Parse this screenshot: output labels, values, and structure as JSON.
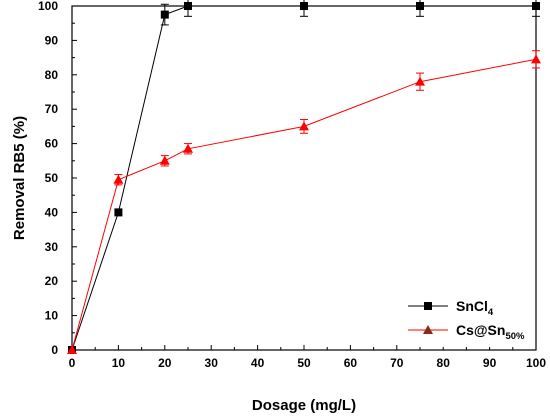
{
  "chart_data": {
    "type": "line",
    "xlabel": "Dosage (mg/L)",
    "ylabel": "Removal RB5 (%)",
    "xlim": [
      0,
      100
    ],
    "ylim": [
      0,
      100
    ],
    "xticks": [
      0,
      10,
      20,
      30,
      40,
      50,
      60,
      70,
      80,
      90,
      100
    ],
    "yticks": [
      0,
      10,
      20,
      30,
      40,
      50,
      60,
      70,
      80,
      90,
      100
    ],
    "grid": false,
    "legend_position": "bottom-right",
    "series": [
      {
        "name": "SnCl4",
        "label_main": "SnCl",
        "label_sub": "4",
        "marker": "square",
        "color": "#000000",
        "x": [
          0,
          10,
          20,
          25,
          50,
          75,
          100
        ],
        "y": [
          0,
          40,
          97.5,
          100,
          100,
          100,
          100
        ],
        "error": [
          0,
          0,
          3,
          3,
          3,
          3,
          3
        ]
      },
      {
        "name": "Cs@Sn50%",
        "label_main": "Cs@Sn",
        "label_sub": "50%",
        "marker": "triangle",
        "color": "#ff0000",
        "legend_marker_color": "#8b2a1a",
        "x": [
          0,
          10,
          20,
          25,
          50,
          75,
          100
        ],
        "y": [
          0,
          49.5,
          55,
          58.5,
          65,
          78,
          84.5
        ],
        "error": [
          0,
          1.5,
          1.5,
          1.5,
          2,
          2.5,
          2.5
        ]
      }
    ]
  }
}
